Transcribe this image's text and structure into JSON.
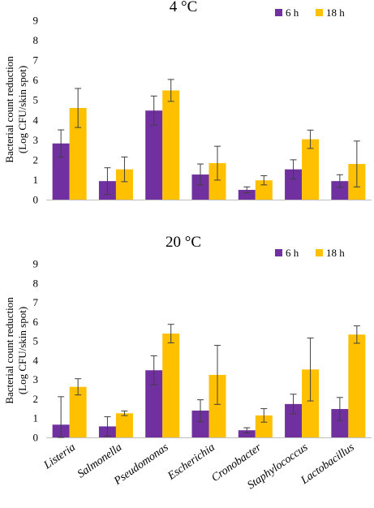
{
  "chart_data": [
    {
      "type": "bar",
      "title": "4 °C",
      "ylabel": [
        "Bacterial count reduction",
        "(Log CFU/skin spot)"
      ],
      "ylim": [
        0,
        9
      ],
      "yticks": [
        "0",
        "1",
        "2",
        "3",
        "4",
        "5",
        "6",
        "7",
        "8",
        "9"
      ],
      "categories": [
        "Listeria",
        "Salmonella",
        "Pseudomonas",
        "Escherichia",
        "Cronobacter",
        "Staphylococcus",
        "Lactobacillus"
      ],
      "show_category_labels": false,
      "legend": "top-right",
      "series": [
        {
          "name": "6 h",
          "color": "#7030a0",
          "values": [
            2.82,
            0.93,
            4.47,
            1.26,
            0.49,
            1.52,
            0.93
          ],
          "errors": [
            0.68,
            0.67,
            0.73,
            0.53,
            0.15,
            0.48,
            0.32
          ]
        },
        {
          "name": "18 h",
          "color": "#ffc000",
          "values": [
            4.6,
            1.52,
            5.48,
            1.83,
            0.97,
            3.03,
            1.79
          ],
          "errors": [
            0.98,
            0.62,
            0.55,
            0.85,
            0.23,
            0.46,
            1.15
          ]
        }
      ]
    },
    {
      "type": "bar",
      "title": "20 °C",
      "ylabel": [
        "Bacterial count reduction",
        "(Log CFU/skin spot)"
      ],
      "ylim": [
        0,
        9
      ],
      "yticks": [
        "0",
        "1",
        "2",
        "3",
        "4",
        "5",
        "6",
        "7",
        "8",
        "9"
      ],
      "categories": [
        "Listeria",
        "Salmonella",
        "Pseudomonas",
        "Escherichia",
        "Cronobacter",
        "Staphylococcus",
        "Lactobacillus"
      ],
      "show_category_labels": true,
      "legend": "top-right",
      "series": [
        {
          "name": "6 h",
          "color": "#7030a0",
          "values": [
            0.66,
            0.57,
            3.48,
            1.39,
            0.37,
            1.73,
            1.47
          ],
          "errors": [
            1.45,
            0.5,
            0.75,
            0.56,
            0.13,
            0.51,
            0.6
          ]
        },
        {
          "name": "18 h",
          "color": "#ffc000",
          "values": [
            2.62,
            1.25,
            5.38,
            3.24,
            1.14,
            3.52,
            5.33
          ],
          "errors": [
            0.42,
            0.12,
            0.48,
            1.53,
            0.35,
            1.63,
            0.45
          ]
        }
      ]
    }
  ]
}
